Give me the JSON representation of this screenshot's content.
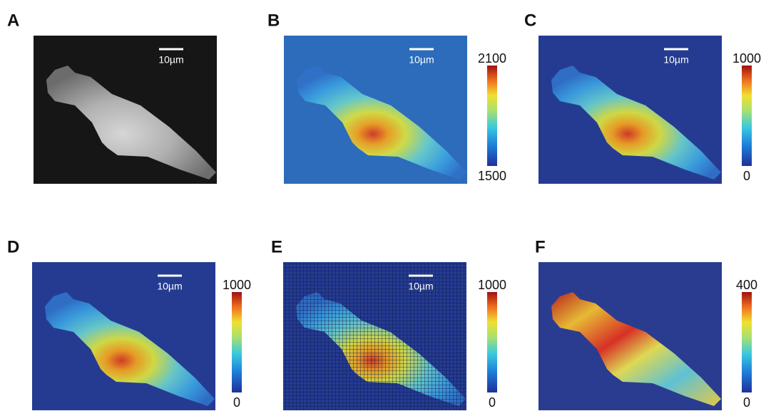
{
  "panels": [
    {
      "label": "A",
      "scale_bar": "10µm"
    },
    {
      "label": "B",
      "scale_bar": "10µm",
      "colorbar": {
        "max": 2100,
        "min": 1500
      }
    },
    {
      "label": "C",
      "scale_bar": "10µm",
      "colorbar": {
        "max": 1000,
        "min": 0
      }
    },
    {
      "label": "D",
      "scale_bar": "10µm",
      "colorbar": {
        "max": 1000,
        "min": 0
      }
    },
    {
      "label": "E",
      "scale_bar": "10µm",
      "colorbar": {
        "max": 1000,
        "min": 0
      }
    },
    {
      "label": "F",
      "colorbar": {
        "max": 400,
        "min": 0
      }
    }
  ]
}
